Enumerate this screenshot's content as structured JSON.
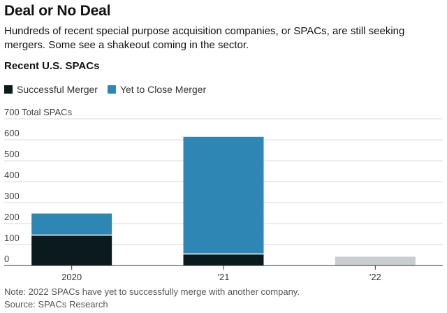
{
  "title": "Deal or No Deal",
  "subtitle": "Hundreds of recent special purpose acquisition companies, or SPACs, are still seeking mergers. Some see a shakeout coming in the sector.",
  "note": "Note: 2022 SPACs have yet to successfully merge with another company.",
  "source": "Source: SPACs Research",
  "colors": {
    "successful": "#0b1a1c",
    "yet_to_close": "#2e86b5",
    "pending_2022": "#c8cdd0",
    "grid": "#d9d9d9",
    "axis": "#333333"
  },
  "chart_data": {
    "type": "bar",
    "stacked": true,
    "title": "Recent U.S. SPACs",
    "ylabel": "700 Total SPACs",
    "ylim": [
      0,
      700
    ],
    "yticks": [
      0,
      100,
      200,
      300,
      400,
      500,
      600
    ],
    "top_tick_label": "700 Total SPACs",
    "categories": [
      "2020",
      "'21",
      "'22"
    ],
    "legend": [
      "Successful Merger",
      "Yet to Close Merger"
    ],
    "series": [
      {
        "name": "Successful Merger",
        "values": [
          145,
          55,
          0
        ]
      },
      {
        "name": "Yet to Close Merger",
        "values": [
          103,
          559,
          0
        ]
      }
    ],
    "pending_2022_total": 42,
    "grid": true,
    "legend_position": "top-left"
  }
}
